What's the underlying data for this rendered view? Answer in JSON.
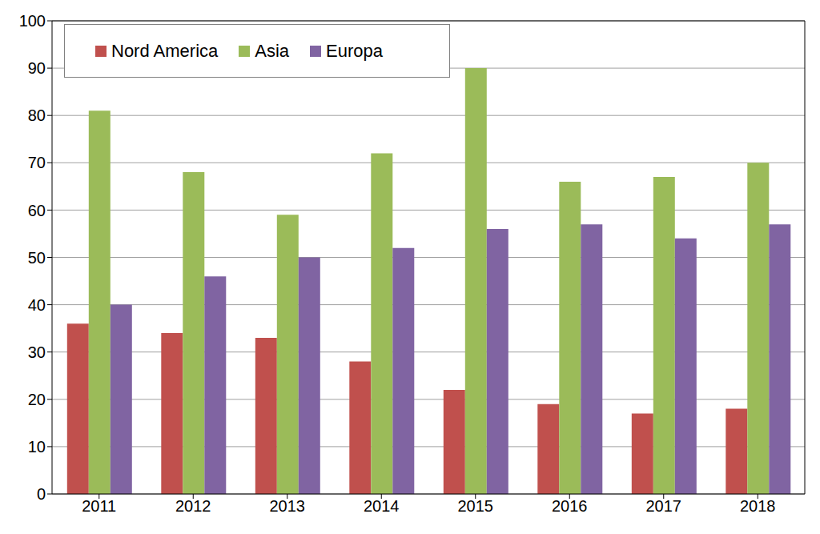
{
  "chart_data": {
    "type": "bar",
    "categories": [
      "2011",
      "2012",
      "2013",
      "2014",
      "2015",
      "2016",
      "2017",
      "2018"
    ],
    "series": [
      {
        "name": "Nord America",
        "color": "#c0504d",
        "values": [
          36,
          34,
          33,
          28,
          22,
          19,
          17,
          18
        ]
      },
      {
        "name": "Asia",
        "color": "#9bbb59",
        "values": [
          81,
          68,
          59,
          72,
          90,
          66,
          67,
          70
        ]
      },
      {
        "name": "Europa",
        "color": "#8064a2",
        "values": [
          40,
          46,
          50,
          52,
          56,
          57,
          54,
          57
        ]
      }
    ],
    "ylim": [
      0,
      100
    ],
    "yticks": [
      0,
      10,
      20,
      30,
      40,
      50,
      60,
      70,
      80,
      90,
      100
    ],
    "grid": true,
    "legend": "upper left"
  }
}
